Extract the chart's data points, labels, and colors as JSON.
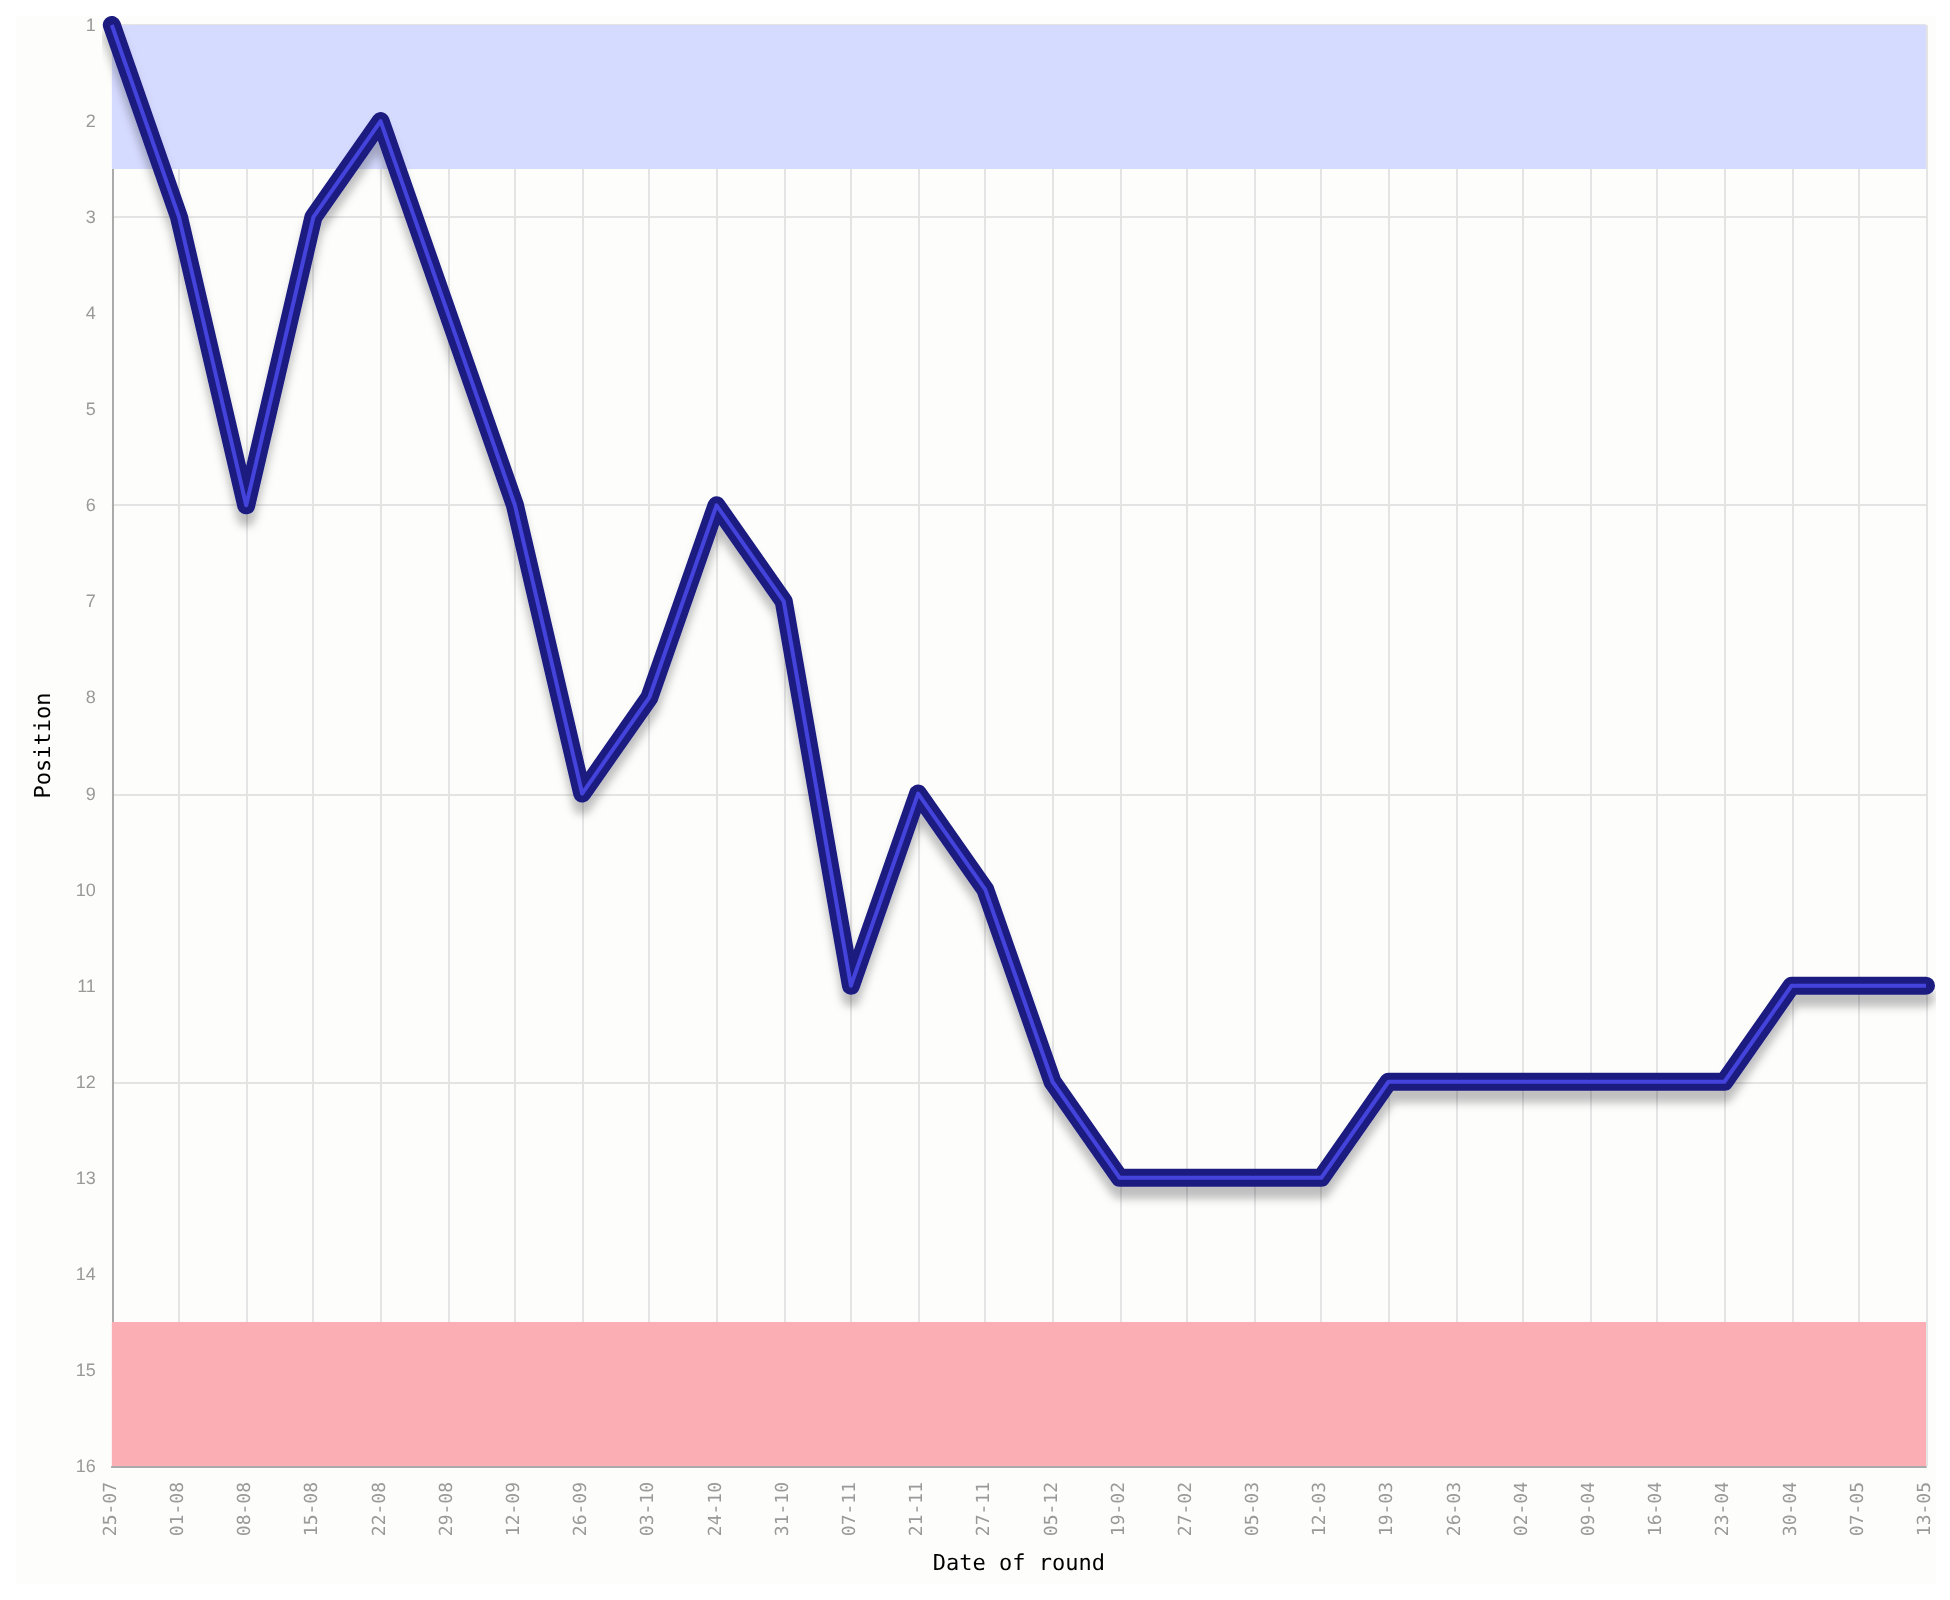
{
  "chart_data": {
    "type": "line",
    "xlabel": "Date of round",
    "ylabel": "Position",
    "categories": [
      "25-07",
      "01-08",
      "08-08",
      "15-08",
      "22-08",
      "29-08",
      "12-09",
      "26-09",
      "03-10",
      "24-10",
      "31-10",
      "07-11",
      "21-11",
      "27-11",
      "05-12",
      "19-02",
      "27-02",
      "05-03",
      "12-03",
      "19-03",
      "26-03",
      "02-04",
      "09-04",
      "16-04",
      "23-04",
      "30-04",
      "07-05",
      "13-05"
    ],
    "series": [
      {
        "color": "#1a1a80",
        "values": [
          1,
          3,
          6,
          3,
          2,
          4,
          6,
          9,
          8,
          6,
          7,
          11,
          9,
          10,
          12,
          13,
          13,
          13,
          13,
          12,
          12,
          12,
          12,
          12,
          12,
          11,
          11,
          11
        ]
      }
    ],
    "ylim": [
      16,
      1
    ],
    "yticks": [
      1,
      2,
      3,
      4,
      5,
      6,
      7,
      8,
      9,
      10,
      11,
      12,
      13,
      14,
      15,
      16
    ],
    "bands": [
      {
        "axis": "y",
        "from": 1,
        "to": 2.5,
        "color": "#d5daff"
      },
      {
        "axis": "y",
        "from": 14.5,
        "to": 16,
        "color": "#fbaeb4"
      }
    ],
    "grid": true,
    "line_style": "solid"
  }
}
